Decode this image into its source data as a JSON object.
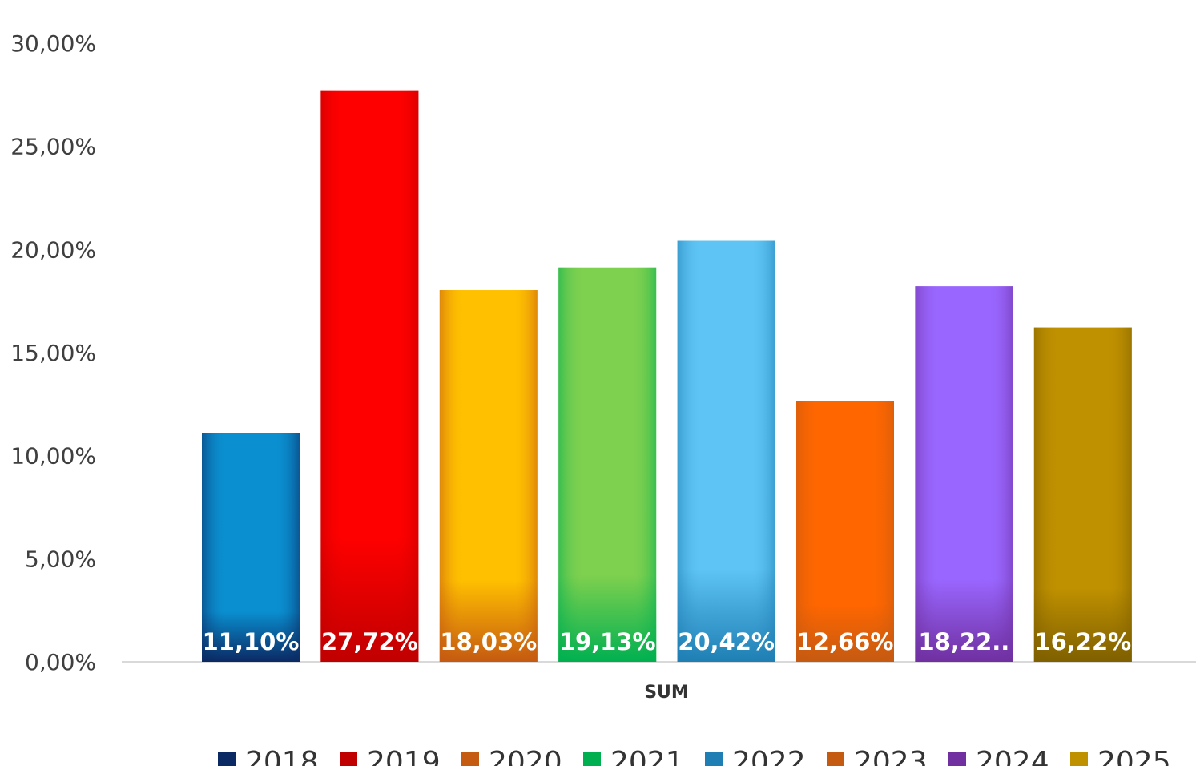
{
  "chart_data": {
    "type": "bar",
    "title": "",
    "xlabel": "SUM",
    "ylabel": "",
    "ylim": [
      0,
      30
    ],
    "yticks": [
      0,
      5,
      10,
      15,
      20,
      25,
      30
    ],
    "ytick_labels": [
      "0,00%",
      "5,00%",
      "10,00%",
      "15,00%",
      "20,00%",
      "25,00%",
      "30,00%"
    ],
    "categories": [
      "SUM"
    ],
    "grid": false,
    "legend_position": "bottom",
    "series": [
      {
        "name": "2018",
        "values": [
          11.1
        ],
        "label": "11,10%",
        "color": "#0a8fd0",
        "dark": "#0b2a63",
        "legend_color": "#0b2a63"
      },
      {
        "name": "2019",
        "values": [
          27.72
        ],
        "label": "27,72%",
        "color": "#ff0000",
        "dark": "#c00000",
        "legend_color": "#c00000"
      },
      {
        "name": "2020",
        "values": [
          18.03
        ],
        "label": "18,03%",
        "color": "#ffc000",
        "dark": "#c55a11",
        "legend_color": "#c55a11"
      },
      {
        "name": "2021",
        "values": [
          19.13
        ],
        "label": "19,13%",
        "color": "#7ed04f",
        "dark": "#00b050",
        "legend_color": "#00b050"
      },
      {
        "name": "2022",
        "values": [
          20.42
        ],
        "label": "20,42%",
        "color": "#5ec4f5",
        "dark": "#1f7fb4",
        "legend_color": "#1f7fb4"
      },
      {
        "name": "2023",
        "values": [
          12.66
        ],
        "label": "12,66%",
        "color": "#ff6600",
        "dark": "#c55a11",
        "legend_color": "#c55a11"
      },
      {
        "name": "2024",
        "values": [
          18.22
        ],
        "label": "18,22..",
        "color": "#9966ff",
        "dark": "#7030a0",
        "legend_color": "#7030a0"
      },
      {
        "name": "2025",
        "values": [
          16.22
        ],
        "label": "16,22%",
        "color": "#bf9000",
        "dark": "#7f6000",
        "legend_color": "#bf9000"
      }
    ]
  }
}
